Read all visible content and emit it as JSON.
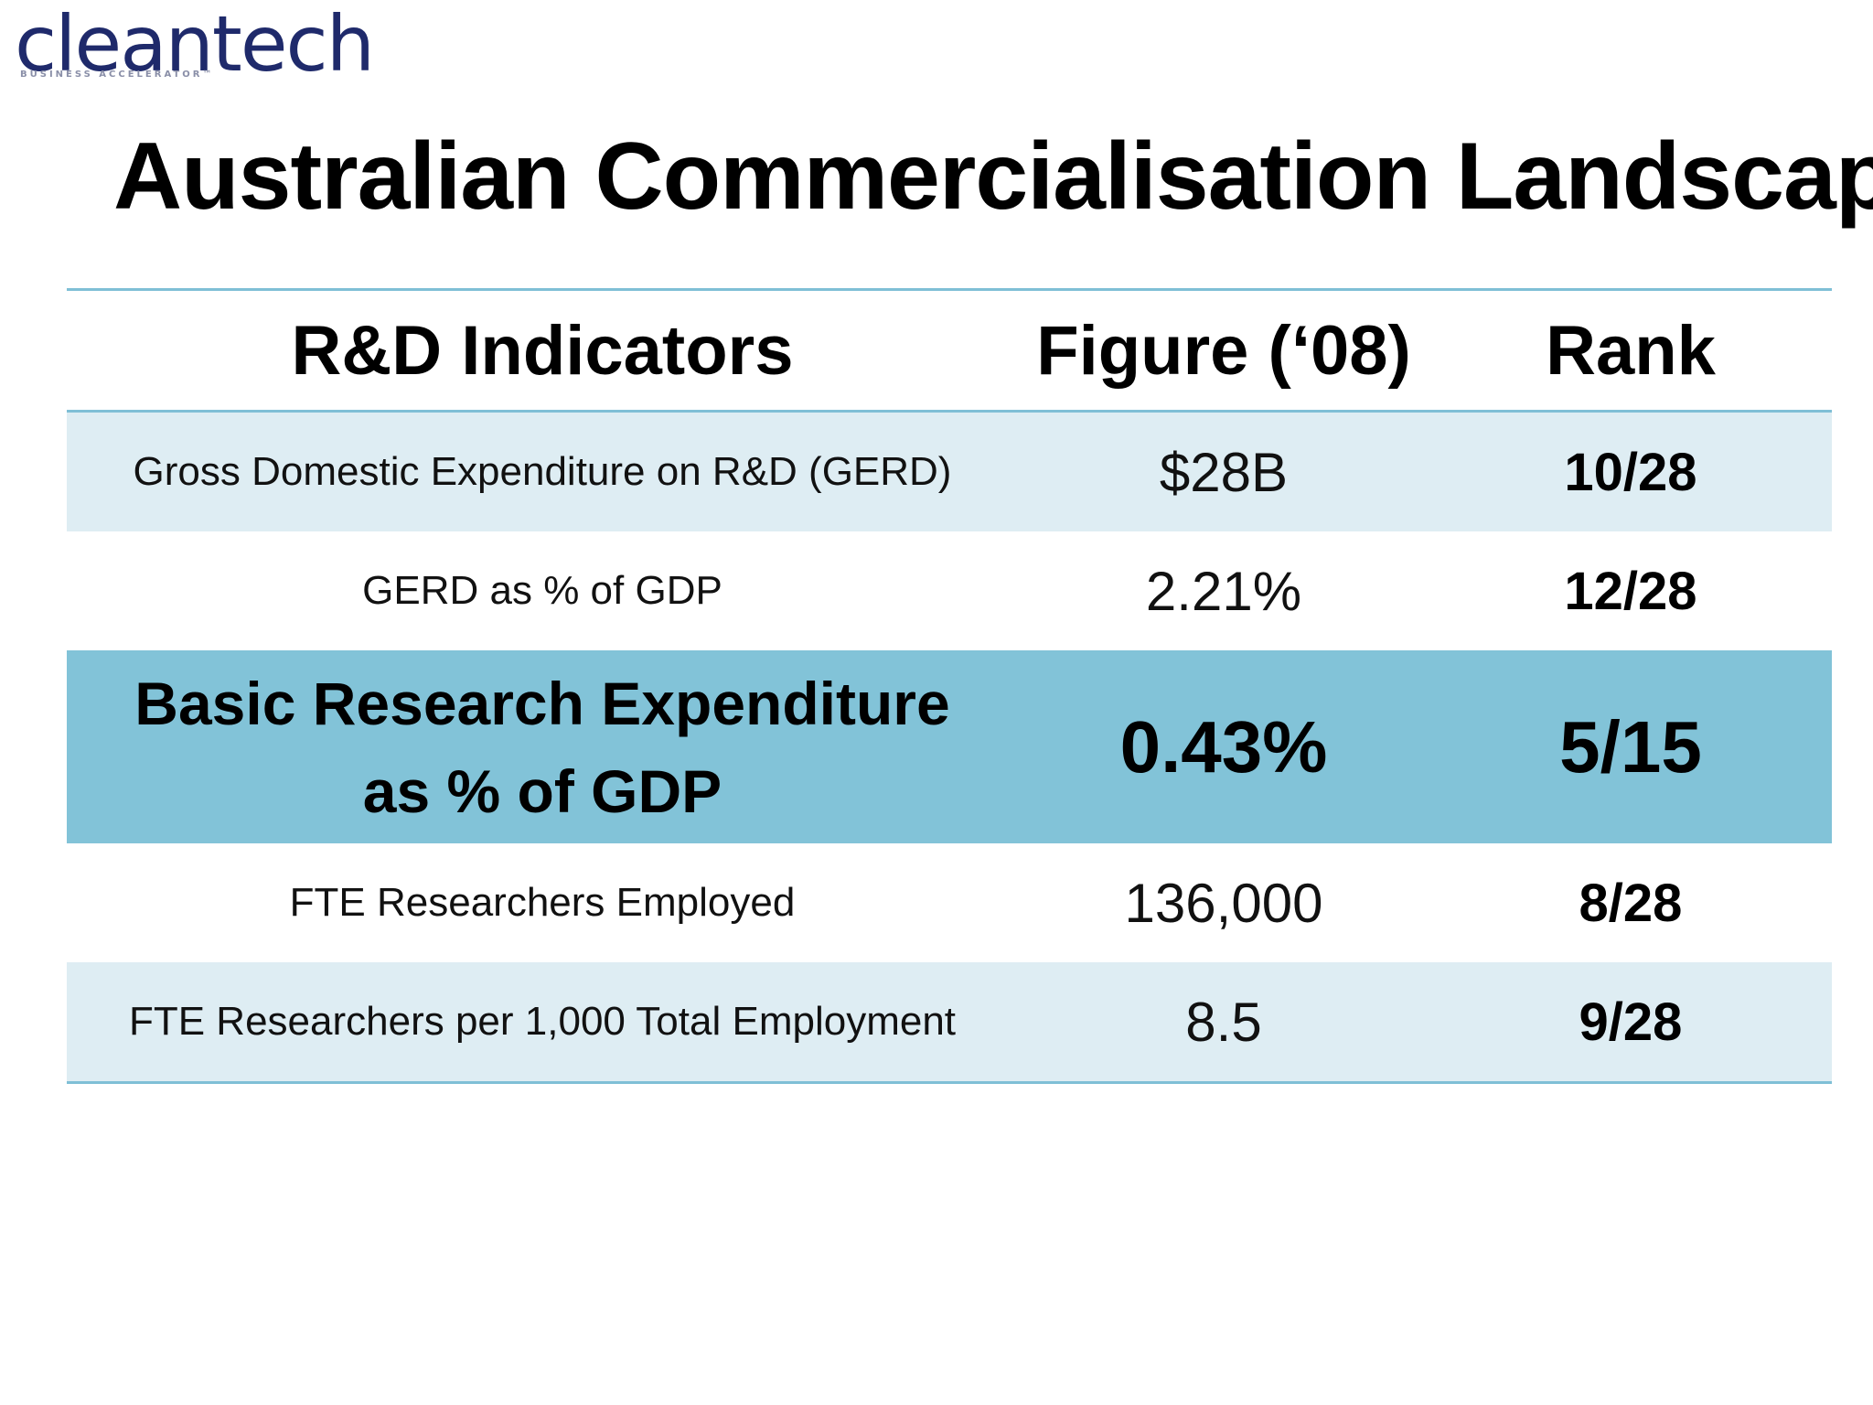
{
  "logo": {
    "text": "cleantech",
    "tagline": "BUSINESS ACCELERATOR™",
    "color": "#1f2a6b"
  },
  "title": "Australian Commercialisation Landscape",
  "table": {
    "headers": {
      "indicator": "R&D Indicators",
      "figure": "Figure (‘08)",
      "rank": "Rank"
    },
    "rows": [
      {
        "indicator": "Gross Domestic Expenditure on R&D (GERD)",
        "figure": "$28B",
        "rank": "10/28"
      },
      {
        "indicator": "GERD as % of GDP",
        "figure": "2.21%",
        "rank": "12/28"
      },
      {
        "indicator_line1": "Basic Research Expenditure",
        "indicator_line2": "as % of GDP",
        "figure": "0.43%",
        "rank": "5/15"
      },
      {
        "indicator": "FTE Researchers Employed",
        "figure": "136,000",
        "rank": "8/28"
      },
      {
        "indicator": "FTE Researchers per 1,000 Total Employment",
        "figure": "8.5",
        "rank": "9/28"
      }
    ],
    "colors": {
      "rule": "#7fbfd6",
      "shaded_row": "#deedf3",
      "highlight_row": "#82c3d8"
    }
  }
}
